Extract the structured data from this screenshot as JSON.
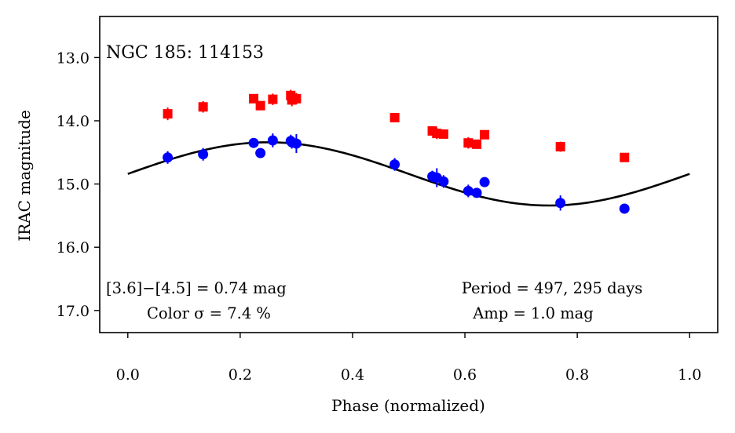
{
  "chart_data": {
    "type": "scatter",
    "title": "NGC 185:  114153",
    "xlabel": "Phase (normalized)",
    "ylabel": "IRAC magnitude",
    "xlim": [
      -0.05,
      1.05
    ],
    "ylim": [
      17.35,
      12.35
    ],
    "y_inverted": true,
    "x_ticks": [
      {
        "value": 0.0,
        "label": "0.0"
      },
      {
        "value": 0.2,
        "label": "0.2"
      },
      {
        "value": 0.4,
        "label": "0.4"
      },
      {
        "value": 0.6,
        "label": "0.6"
      },
      {
        "value": 0.8,
        "label": "0.8"
      },
      {
        "value": 1.0,
        "label": "1.0"
      }
    ],
    "y_ticks": [
      {
        "value": 13.0,
        "label": "13.0"
      },
      {
        "value": 14.0,
        "label": "14.0"
      },
      {
        "value": 15.0,
        "label": "15.0"
      },
      {
        "value": 16.0,
        "label": "16.0"
      },
      {
        "value": 17.0,
        "label": "17.0"
      }
    ],
    "series": [
      {
        "name": "[3.6]",
        "color": "#ff0000",
        "marker": "square",
        "points": [
          {
            "x": 0.071,
            "y": 13.89,
            "err": 0.1
          },
          {
            "x": 0.134,
            "y": 13.78,
            "err": 0.09
          },
          {
            "x": 0.224,
            "y": 13.65,
            "err": 0.07
          },
          {
            "x": 0.236,
            "y": 13.76,
            "err": 0.07
          },
          {
            "x": 0.258,
            "y": 13.66,
            "err": 0.09
          },
          {
            "x": 0.29,
            "y": 13.6,
            "err": 0.09
          },
          {
            "x": 0.292,
            "y": 13.67,
            "err": 0.1
          },
          {
            "x": 0.3,
            "y": 13.65,
            "err": 0.09
          },
          {
            "x": 0.475,
            "y": 13.95,
            "err": 0.07
          },
          {
            "x": 0.542,
            "y": 14.16,
            "err": 0.06
          },
          {
            "x": 0.55,
            "y": 14.2,
            "err": 0.09
          },
          {
            "x": 0.562,
            "y": 14.21,
            "err": 0.07
          },
          {
            "x": 0.606,
            "y": 14.35,
            "err": 0.09
          },
          {
            "x": 0.621,
            "y": 14.37,
            "err": 0.07
          },
          {
            "x": 0.635,
            "y": 14.22,
            "err": 0.06
          },
          {
            "x": 0.77,
            "y": 14.41,
            "err": 0.08
          },
          {
            "x": 0.884,
            "y": 14.58,
            "err": 0.05
          }
        ]
      },
      {
        "name": "[4.5]",
        "color": "#0000ff",
        "marker": "circle",
        "points": [
          {
            "x": 0.071,
            "y": 14.58,
            "err": 0.1
          },
          {
            "x": 0.134,
            "y": 14.53,
            "err": 0.1
          },
          {
            "x": 0.224,
            "y": 14.35,
            "err": 0.06
          },
          {
            "x": 0.236,
            "y": 14.51,
            "err": 0.06
          },
          {
            "x": 0.258,
            "y": 14.31,
            "err": 0.11
          },
          {
            "x": 0.29,
            "y": 14.32,
            "err": 0.1
          },
          {
            "x": 0.292,
            "y": 14.34,
            "err": 0.1
          },
          {
            "x": 0.3,
            "y": 14.36,
            "err": 0.15
          },
          {
            "x": 0.475,
            "y": 14.69,
            "err": 0.1
          },
          {
            "x": 0.542,
            "y": 14.88,
            "err": 0.09
          },
          {
            "x": 0.55,
            "y": 14.9,
            "err": 0.15
          },
          {
            "x": 0.562,
            "y": 14.96,
            "err": 0.1
          },
          {
            "x": 0.606,
            "y": 15.11,
            "err": 0.1
          },
          {
            "x": 0.621,
            "y": 15.14,
            "err": 0.06
          },
          {
            "x": 0.635,
            "y": 14.97,
            "err": 0.05
          },
          {
            "x": 0.77,
            "y": 15.3,
            "err": 0.12
          },
          {
            "x": 0.884,
            "y": 15.39,
            "err": 0.06
          }
        ]
      }
    ],
    "fit_curve": {
      "name": "sinusoidal fit",
      "color": "#000000",
      "mean": 14.84,
      "amplitude": 0.5,
      "min_phase": 0.25
    },
    "annotations": {
      "color_line1": "[3.6]−[4.5] = 0.74 mag",
      "color_line2": "Color σ = 7.4 %",
      "period_line": "Period = 497, 295 days",
      "amp_line": "Amp = 1.0 mag"
    }
  }
}
